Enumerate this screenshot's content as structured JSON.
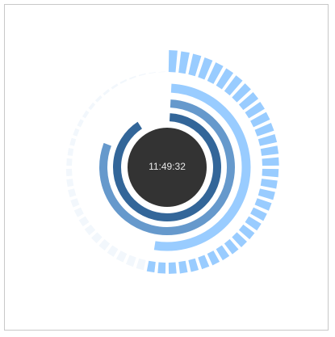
{
  "clock": {
    "time": "11:49:32",
    "hours": 11,
    "minutes": 49,
    "seconds": 32,
    "hours_max": 12,
    "minutes_max": 60,
    "seconds_max": 60,
    "tick_count": 60
  },
  "colors": {
    "face": "#333333",
    "face_stroke": "#ffffff",
    "hour_ring": "#336699",
    "minute_ring": "#6699cc",
    "second_ring": "#99ccff",
    "tick_active": "#99ccff",
    "tick_inactive": "#f2f7fc",
    "frame_border": "#c8c8c8"
  }
}
